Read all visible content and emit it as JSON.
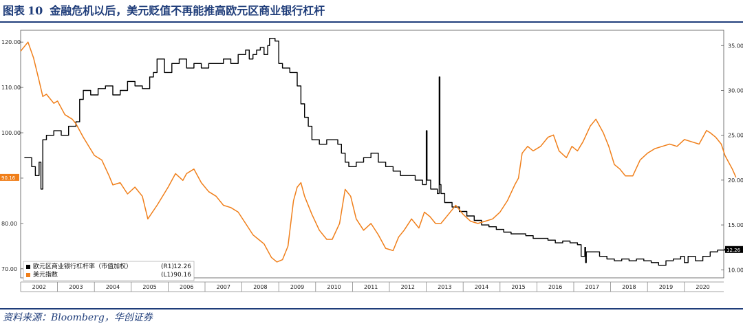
{
  "figure": {
    "label": "图表",
    "number": "10",
    "title": "金融危机以后，美元贬值不再能推高欧元区商业银行杠杆",
    "source": "资料来源：Bloomberg，华创证券"
  },
  "colors": {
    "heading": "#1f3d7a",
    "series_leverage": "#000000",
    "series_dollar": "#f07f1a"
  },
  "chart_data": {
    "type": "line",
    "title": "",
    "x_ticks": [
      "2002",
      "2003",
      "2004",
      "2005",
      "2006",
      "2007",
      "2008",
      "2009",
      "2010",
      "2011",
      "2012",
      "2013",
      "2014",
      "2015",
      "2016",
      "2017",
      "2018",
      "2019",
      "2020"
    ],
    "xlim": [
      2001.5,
      2021.0
    ],
    "y_left": {
      "ticks": [
        "70.00",
        "80.00",
        "90.00",
        "100.00",
        "110.00",
        "120.00"
      ],
      "range": [
        68.0,
        122.0
      ]
    },
    "y_right": {
      "ticks": [
        "10.00",
        "15.00",
        "20.00",
        "25.00",
        "30.00",
        "35.00"
      ],
      "range": [
        9.1,
        36.4
      ]
    },
    "grid": false,
    "legend_position": "bottom-left",
    "series": [
      {
        "name": "欧元区商业银行杠杆率（市值加权）",
        "axis_tag": "(R1)",
        "last_value": "12.26",
        "axis": "right",
        "step": true,
        "color": "#000000",
        "x": [
          2001.6,
          2001.8,
          2001.9,
          2002.0,
          2002.05,
          2002.1,
          2002.2,
          2002.4,
          2002.6,
          2002.8,
          2003.0,
          2003.1,
          2003.2,
          2003.4,
          2003.6,
          2003.8,
          2004.0,
          2004.2,
          2004.4,
          2004.6,
          2004.8,
          2005.0,
          2005.1,
          2005.2,
          2005.4,
          2005.6,
          2005.8,
          2006.0,
          2006.2,
          2006.4,
          2006.6,
          2006.8,
          2007.0,
          2007.2,
          2007.4,
          2007.6,
          2007.7,
          2007.8,
          2007.9,
          2008.0,
          2008.1,
          2008.2,
          2008.25,
          2008.4,
          2008.5,
          2008.6,
          2008.8,
          2009.0,
          2009.1,
          2009.2,
          2009.3,
          2009.4,
          2009.6,
          2009.8,
          2010.0,
          2010.1,
          2010.2,
          2010.3,
          2010.4,
          2010.6,
          2010.8,
          2011.0,
          2011.2,
          2011.4,
          2011.6,
          2011.8,
          2012.0,
          2012.2,
          2012.4,
          2012.5,
          2012.52,
          2012.6,
          2012.62,
          2012.8,
          2012.85,
          2012.87,
          2012.9,
          2013.0,
          2013.2,
          2013.4,
          2013.6,
          2013.8,
          2014.0,
          2014.2,
          2014.4,
          2014.6,
          2014.8,
          2015.0,
          2015.2,
          2015.4,
          2015.6,
          2015.8,
          2016.0,
          2016.2,
          2016.4,
          2016.6,
          2016.7,
          2016.8,
          2016.82,
          2016.84,
          2017.0,
          2017.2,
          2017.4,
          2017.6,
          2017.8,
          2018.0,
          2018.2,
          2018.4,
          2018.6,
          2018.8,
          2019.0,
          2019.2,
          2019.4,
          2019.5,
          2019.6,
          2019.8,
          2020.0,
          2020.2,
          2020.4,
          2020.6,
          2020.8
        ],
        "y": [
          22.5,
          21.5,
          20.5,
          22.0,
          19.0,
          24.5,
          25.0,
          25.5,
          25.0,
          26.0,
          26.5,
          29.0,
          30.0,
          29.5,
          30.2,
          30.5,
          29.5,
          30.0,
          31.0,
          30.5,
          30.2,
          31.5,
          32.0,
          33.5,
          32.0,
          33.0,
          33.5,
          32.5,
          33.0,
          32.5,
          33.0,
          33.0,
          33.5,
          33.0,
          34.0,
          34.5,
          33.5,
          34.0,
          34.5,
          34.8,
          34.0,
          35.0,
          35.8,
          35.5,
          33.0,
          32.5,
          32.0,
          30.5,
          28.5,
          27.0,
          26.0,
          24.5,
          24.0,
          24.5,
          24.5,
          24.0,
          23.0,
          22.0,
          21.5,
          22.0,
          22.5,
          23.0,
          22.0,
          21.5,
          21.0,
          20.5,
          20.5,
          20.0,
          19.5,
          25.5,
          20.0,
          20.0,
          19.0,
          18.5,
          31.5,
          19.5,
          18.5,
          17.5,
          17.0,
          16.5,
          16.0,
          15.5,
          15.0,
          14.8,
          14.5,
          14.2,
          14.0,
          14.0,
          13.8,
          13.5,
          13.5,
          13.3,
          13.0,
          13.2,
          13.0,
          12.8,
          11.5,
          12.5,
          10.8,
          12.0,
          12.0,
          11.5,
          11.2,
          11.0,
          11.2,
          11.0,
          11.2,
          11.0,
          10.8,
          10.5,
          11.0,
          11.2,
          11.5,
          10.8,
          11.5,
          11.0,
          11.5,
          12.0,
          12.2,
          12.3,
          12.26
        ]
      },
      {
        "name": "美元指数",
        "axis_tag": "(L1)",
        "last_value": "90.16",
        "axis": "left",
        "step": false,
        "color": "#f07f1a",
        "x": [
          2001.5,
          2001.7,
          2001.85,
          2002.0,
          2002.1,
          2002.2,
          2002.4,
          2002.5,
          2002.7,
          2002.9,
          2003.0,
          2003.2,
          2003.5,
          2003.7,
          2003.9,
          2004.0,
          2004.2,
          2004.4,
          2004.6,
          2004.8,
          2004.95,
          2005.2,
          2005.5,
          2005.7,
          2005.9,
          2006.0,
          2006.2,
          2006.4,
          2006.6,
          2006.8,
          2007.0,
          2007.2,
          2007.4,
          2007.6,
          2007.8,
          2007.95,
          2008.1,
          2008.3,
          2008.45,
          2008.6,
          2008.75,
          2008.9,
          2009.0,
          2009.1,
          2009.2,
          2009.4,
          2009.6,
          2009.8,
          2009.95,
          2010.15,
          2010.3,
          2010.45,
          2010.6,
          2010.8,
          2011.0,
          2011.2,
          2011.4,
          2011.6,
          2011.75,
          2011.9,
          2012.1,
          2012.3,
          2012.45,
          2012.6,
          2012.75,
          2012.9,
          2013.1,
          2013.3,
          2013.5,
          2013.7,
          2013.9,
          2014.1,
          2014.3,
          2014.5,
          2014.7,
          2014.9,
          2015.0,
          2015.1,
          2015.25,
          2015.4,
          2015.6,
          2015.8,
          2015.95,
          2016.1,
          2016.3,
          2016.45,
          2016.6,
          2016.75,
          2016.95,
          2017.1,
          2017.3,
          2017.45,
          2017.6,
          2017.75,
          2017.9,
          2018.1,
          2018.3,
          2018.5,
          2018.7,
          2018.9,
          2019.1,
          2019.3,
          2019.5,
          2019.7,
          2019.9,
          2020.0,
          2020.1,
          2020.2,
          2020.35,
          2020.5,
          2020.6,
          2020.7,
          2020.8,
          2020.9
        ],
        "y": [
          118.0,
          120.0,
          116.5,
          111.5,
          108.0,
          108.5,
          106.5,
          107.0,
          104.0,
          103.0,
          102.0,
          99.0,
          95.0,
          94.0,
          90.5,
          88.5,
          89.0,
          86.5,
          88.0,
          86.0,
          81.0,
          84.0,
          88.0,
          91.0,
          89.5,
          91.0,
          92.0,
          89.0,
          87.0,
          86.0,
          84.0,
          83.5,
          82.5,
          80.0,
          77.5,
          76.5,
          75.5,
          72.5,
          71.5,
          72.0,
          75.0,
          85.0,
          88.0,
          89.0,
          86.0,
          82.0,
          78.5,
          76.5,
          76.5,
          80.0,
          87.5,
          86.0,
          81.0,
          78.5,
          80.0,
          77.5,
          74.5,
          74.0,
          77.0,
          78.5,
          81.0,
          79.0,
          82.5,
          81.5,
          80.0,
          80.0,
          82.0,
          84.0,
          82.0,
          80.5,
          80.0,
          80.5,
          81.0,
          82.5,
          85.0,
          88.5,
          90.0,
          95.5,
          97.0,
          96.0,
          97.0,
          99.0,
          99.5,
          96.0,
          94.5,
          97.0,
          96.0,
          98.0,
          101.5,
          103.0,
          100.0,
          97.0,
          93.0,
          92.0,
          90.5,
          90.5,
          94.0,
          95.5,
          96.5,
          97.0,
          97.5,
          97.0,
          98.5,
          98.0,
          97.5,
          99.0,
          100.5,
          100.0,
          99.0,
          97.5,
          95.0,
          93.5,
          92.0,
          90.16
        ]
      }
    ]
  }
}
